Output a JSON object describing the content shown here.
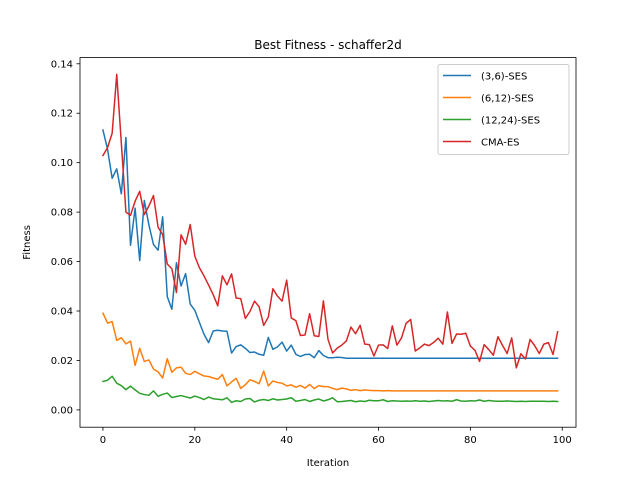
{
  "chart_data": {
    "type": "line",
    "title": "Best Fitness - schaffer2d",
    "xlabel": "Iteration",
    "ylabel": "Fitness",
    "xlim": [
      -5,
      103
    ],
    "ylim": [
      -0.007,
      0.1425
    ],
    "xticks": [
      0,
      20,
      40,
      60,
      80,
      100
    ],
    "yticks": [
      0.0,
      0.02,
      0.04,
      0.06,
      0.08,
      0.1,
      0.12,
      0.14
    ],
    "ytick_labels": [
      "0.00",
      "0.02",
      "0.04",
      "0.06",
      "0.08",
      "0.10",
      "0.12",
      "0.14"
    ],
    "grid": false,
    "legend_position": "top-right",
    "series": [
      {
        "name": "(3,6)-SES",
        "color": "#1f77b4",
        "x_start": 0,
        "values": [
          0.1132,
          0.1054,
          0.0937,
          0.0975,
          0.0874,
          0.1102,
          0.0666,
          0.0816,
          0.0604,
          0.0847,
          0.0748,
          0.0669,
          0.0646,
          0.0781,
          0.0458,
          0.0407,
          0.0595,
          0.0501,
          0.0551,
          0.0428,
          0.0403,
          0.0354,
          0.0306,
          0.0272,
          0.0319,
          0.0322,
          0.0319,
          0.0318,
          0.023,
          0.0256,
          0.0263,
          0.0249,
          0.0232,
          0.0234,
          0.0225,
          0.0221,
          0.0293,
          0.0245,
          0.0255,
          0.0274,
          0.0238,
          0.0262,
          0.0225,
          0.0216,
          0.0224,
          0.0225,
          0.0211,
          0.024,
          0.022,
          0.0211,
          0.0211,
          0.0213,
          0.0212,
          0.0209,
          0.0209,
          0.0209,
          0.0209,
          0.0209,
          0.0209,
          0.0209,
          0.0209,
          0.0209,
          0.0209,
          0.0209,
          0.0209,
          0.0209,
          0.0209,
          0.0209,
          0.0209,
          0.0209,
          0.0209,
          0.0209,
          0.0209,
          0.0209,
          0.0209,
          0.0209,
          0.0209,
          0.0209,
          0.0209,
          0.0209,
          0.0209,
          0.0209,
          0.0209,
          0.0209,
          0.0209,
          0.0209,
          0.0209,
          0.0209,
          0.0209,
          0.0209,
          0.0209,
          0.0209,
          0.0209,
          0.0209,
          0.0209,
          0.0209,
          0.0209,
          0.0209,
          0.0209,
          0.0209
        ]
      },
      {
        "name": "(6,12)-SES",
        "color": "#ff7f0e",
        "x_start": 0,
        "values": [
          0.0391,
          0.0351,
          0.0357,
          0.0281,
          0.0292,
          0.0267,
          0.0278,
          0.018,
          0.0249,
          0.0196,
          0.0202,
          0.0165,
          0.0154,
          0.0129,
          0.0207,
          0.0152,
          0.017,
          0.0173,
          0.0148,
          0.0143,
          0.0156,
          0.0146,
          0.0137,
          0.0135,
          0.0129,
          0.0124,
          0.0143,
          0.0097,
          0.0113,
          0.0128,
          0.0087,
          0.0102,
          0.0122,
          0.0115,
          0.0106,
          0.0157,
          0.0097,
          0.0117,
          0.0111,
          0.0108,
          0.0097,
          0.0101,
          0.0092,
          0.0099,
          0.0088,
          0.0103,
          0.0086,
          0.0098,
          0.0094,
          0.0094,
          0.0087,
          0.0082,
          0.0088,
          0.0085,
          0.0079,
          0.0082,
          0.0078,
          0.0081,
          0.0079,
          0.0078,
          0.0078,
          0.0077,
          0.0078,
          0.0077,
          0.0077,
          0.0077,
          0.0077,
          0.0077,
          0.0077,
          0.0077,
          0.0077,
          0.0077,
          0.0077,
          0.0077,
          0.0077,
          0.0077,
          0.0077,
          0.0077,
          0.0077,
          0.0077,
          0.0077,
          0.0077,
          0.0077,
          0.0077,
          0.0077,
          0.0077,
          0.0077,
          0.0077,
          0.0077,
          0.0077,
          0.0077,
          0.0077,
          0.0077,
          0.0077,
          0.0077,
          0.0077,
          0.0077,
          0.0077,
          0.0077,
          0.0077
        ]
      },
      {
        "name": "(12,24)-SES",
        "color": "#2ca02c",
        "x_start": 0,
        "values": [
          0.0115,
          0.012,
          0.0136,
          0.0108,
          0.0098,
          0.0082,
          0.0096,
          0.0081,
          0.0067,
          0.0062,
          0.0059,
          0.0077,
          0.0055,
          0.0063,
          0.0068,
          0.005,
          0.0054,
          0.0058,
          0.0053,
          0.0048,
          0.0056,
          0.005,
          0.0042,
          0.0052,
          0.0045,
          0.0043,
          0.0041,
          0.0049,
          0.003,
          0.0037,
          0.0034,
          0.0044,
          0.0046,
          0.0032,
          0.0039,
          0.0042,
          0.0038,
          0.0045,
          0.004,
          0.0042,
          0.0044,
          0.0049,
          0.0035,
          0.0038,
          0.0042,
          0.0034,
          0.004,
          0.0044,
          0.0036,
          0.0041,
          0.0049,
          0.0033,
          0.0034,
          0.0036,
          0.0038,
          0.0033,
          0.0036,
          0.0034,
          0.0039,
          0.0037,
          0.0037,
          0.0041,
          0.0034,
          0.0037,
          0.0036,
          0.0035,
          0.0036,
          0.0035,
          0.0037,
          0.0035,
          0.0036,
          0.0034,
          0.0036,
          0.0038,
          0.0036,
          0.0037,
          0.0035,
          0.0041,
          0.0036,
          0.0035,
          0.0037,
          0.0036,
          0.004,
          0.0035,
          0.0038,
          0.0036,
          0.0035,
          0.0035,
          0.0036,
          0.0035,
          0.0034,
          0.0035,
          0.0034,
          0.0035,
          0.0035,
          0.0035,
          0.0035,
          0.0034,
          0.0035,
          0.0034
        ]
      },
      {
        "name": "CMA-ES",
        "color": "#d62728",
        "x_start": 0,
        "values": [
          0.1029,
          0.1061,
          0.1119,
          0.1357,
          0.1079,
          0.08,
          0.0787,
          0.0844,
          0.0884,
          0.079,
          0.0825,
          0.0867,
          0.0739,
          0.0709,
          0.059,
          0.0571,
          0.0475,
          0.0708,
          0.067,
          0.075,
          0.0622,
          0.0575,
          0.0542,
          0.0505,
          0.0466,
          0.0421,
          0.0542,
          0.0506,
          0.055,
          0.0452,
          0.045,
          0.037,
          0.0398,
          0.044,
          0.0417,
          0.0342,
          0.0375,
          0.049,
          0.046,
          0.044,
          0.0525,
          0.0372,
          0.0361,
          0.0301,
          0.0303,
          0.0389,
          0.03,
          0.0297,
          0.0441,
          0.0285,
          0.023,
          0.025,
          0.0262,
          0.0279,
          0.0335,
          0.0308,
          0.0342,
          0.0266,
          0.0264,
          0.0218,
          0.0262,
          0.0263,
          0.0248,
          0.034,
          0.0262,
          0.0291,
          0.035,
          0.0366,
          0.0238,
          0.0251,
          0.0266,
          0.026,
          0.0273,
          0.029,
          0.0266,
          0.0396,
          0.0269,
          0.0307,
          0.0306,
          0.031,
          0.0258,
          0.0241,
          0.0196,
          0.0264,
          0.0244,
          0.0221,
          0.0296,
          0.0261,
          0.0228,
          0.0291,
          0.017,
          0.0227,
          0.0206,
          0.0285,
          0.026,
          0.0228,
          0.0266,
          0.0272,
          0.0224,
          0.0316
        ]
      }
    ]
  }
}
